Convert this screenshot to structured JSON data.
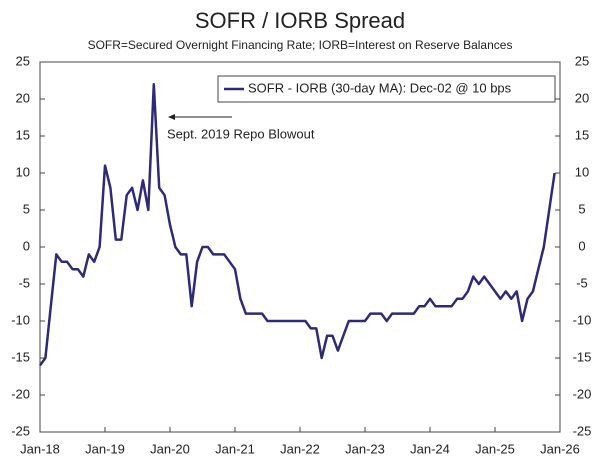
{
  "chart_data": {
    "type": "line",
    "title": "SOFR / IORB Spread",
    "subtitle": "SOFR=Secured Overnight Financing Rate; IORB=Interest on Reserve Balances",
    "annotation": "Sept. 2019 Repo Blowout",
    "x": [
      "2018-01",
      "2018-02",
      "2018-03",
      "2018-04",
      "2018-05",
      "2018-06",
      "2018-07",
      "2018-08",
      "2018-09",
      "2018-10",
      "2018-11",
      "2018-12",
      "2019-01",
      "2019-02",
      "2019-03",
      "2019-04",
      "2019-05",
      "2019-06",
      "2019-07",
      "2019-08",
      "2019-09",
      "2019-10",
      "2019-11",
      "2019-12",
      "2020-01",
      "2020-02",
      "2020-03",
      "2020-04",
      "2020-05",
      "2020-06",
      "2020-07",
      "2020-08",
      "2020-09",
      "2020-10",
      "2020-11",
      "2020-12",
      "2021-01",
      "2021-02",
      "2021-03",
      "2021-04",
      "2021-05",
      "2021-06",
      "2021-07",
      "2021-08",
      "2021-09",
      "2021-10",
      "2021-11",
      "2021-12",
      "2022-01",
      "2022-02",
      "2022-03",
      "2022-04",
      "2022-05",
      "2022-06",
      "2022-07",
      "2022-08",
      "2022-09",
      "2022-10",
      "2022-11",
      "2022-12",
      "2023-01",
      "2023-02",
      "2023-03",
      "2023-04",
      "2023-05",
      "2023-06",
      "2023-07",
      "2023-08",
      "2023-09",
      "2023-10",
      "2023-11",
      "2023-12",
      "2024-01",
      "2024-02",
      "2024-03",
      "2024-04",
      "2024-05",
      "2024-06",
      "2024-07",
      "2024-08",
      "2024-09",
      "2024-10",
      "2024-11",
      "2024-12",
      "2025-01",
      "2025-02",
      "2025-03",
      "2025-04",
      "2025-05",
      "2025-06",
      "2025-07",
      "2025-08",
      "2025-09",
      "2025-10",
      "2025-11",
      "2025-12"
    ],
    "series": [
      {
        "name": "SOFR - IORB (30-day MA): Dec-02 @ 10 bps",
        "color": "#2e2a78",
        "values": [
          -16,
          -15,
          -8,
          -1,
          -2,
          -2,
          -3,
          -3,
          -4,
          -1,
          -2,
          0,
          11,
          8,
          1,
          1,
          7,
          8,
          5,
          9,
          5,
          22,
          8,
          7,
          3,
          0,
          -1,
          -1,
          -8,
          -2,
          0,
          0,
          -1,
          -1,
          -1,
          -2,
          -3,
          -7,
          -9,
          -9,
          -9,
          -9,
          -10,
          -10,
          -10,
          -10,
          -10,
          -10,
          -10,
          -10,
          -11,
          -11,
          -15,
          -12,
          -12,
          -14,
          -12,
          -10,
          -10,
          -10,
          -10,
          -9,
          -9,
          -9,
          -10,
          -9,
          -9,
          -9,
          -9,
          -9,
          -8,
          -8,
          -7,
          -8,
          -8,
          -8,
          -8,
          -7,
          -7,
          -6,
          -4,
          -5,
          -4,
          -5,
          -6,
          -7,
          -6,
          -7,
          -6,
          -10,
          -7,
          -6,
          -3,
          0,
          5,
          10
        ]
      }
    ],
    "xlim": [
      "2018-01",
      "2026-01"
    ],
    "xticks": [
      {
        "value": "2018-01",
        "label": "Jan-18"
      },
      {
        "value": "2019-01",
        "label": "Jan-19"
      },
      {
        "value": "2020-01",
        "label": "Jan-20"
      },
      {
        "value": "2021-01",
        "label": "Jan-21"
      },
      {
        "value": "2022-01",
        "label": "Jan-22"
      },
      {
        "value": "2023-01",
        "label": "Jan-23"
      },
      {
        "value": "2024-01",
        "label": "Jan-24"
      },
      {
        "value": "2025-01",
        "label": "Jan-25"
      },
      {
        "value": "2026-01",
        "label": "Jan-26"
      }
    ],
    "ylim": [
      -25,
      25
    ],
    "yticks": [
      -25,
      -20,
      -15,
      -10,
      -5,
      0,
      5,
      10,
      15,
      20,
      25
    ],
    "y2lim": [
      -25,
      25
    ],
    "y2ticks": [
      -25,
      -20,
      -15,
      -10,
      -5,
      0,
      5,
      10,
      15,
      20,
      25
    ],
    "grid": false
  }
}
